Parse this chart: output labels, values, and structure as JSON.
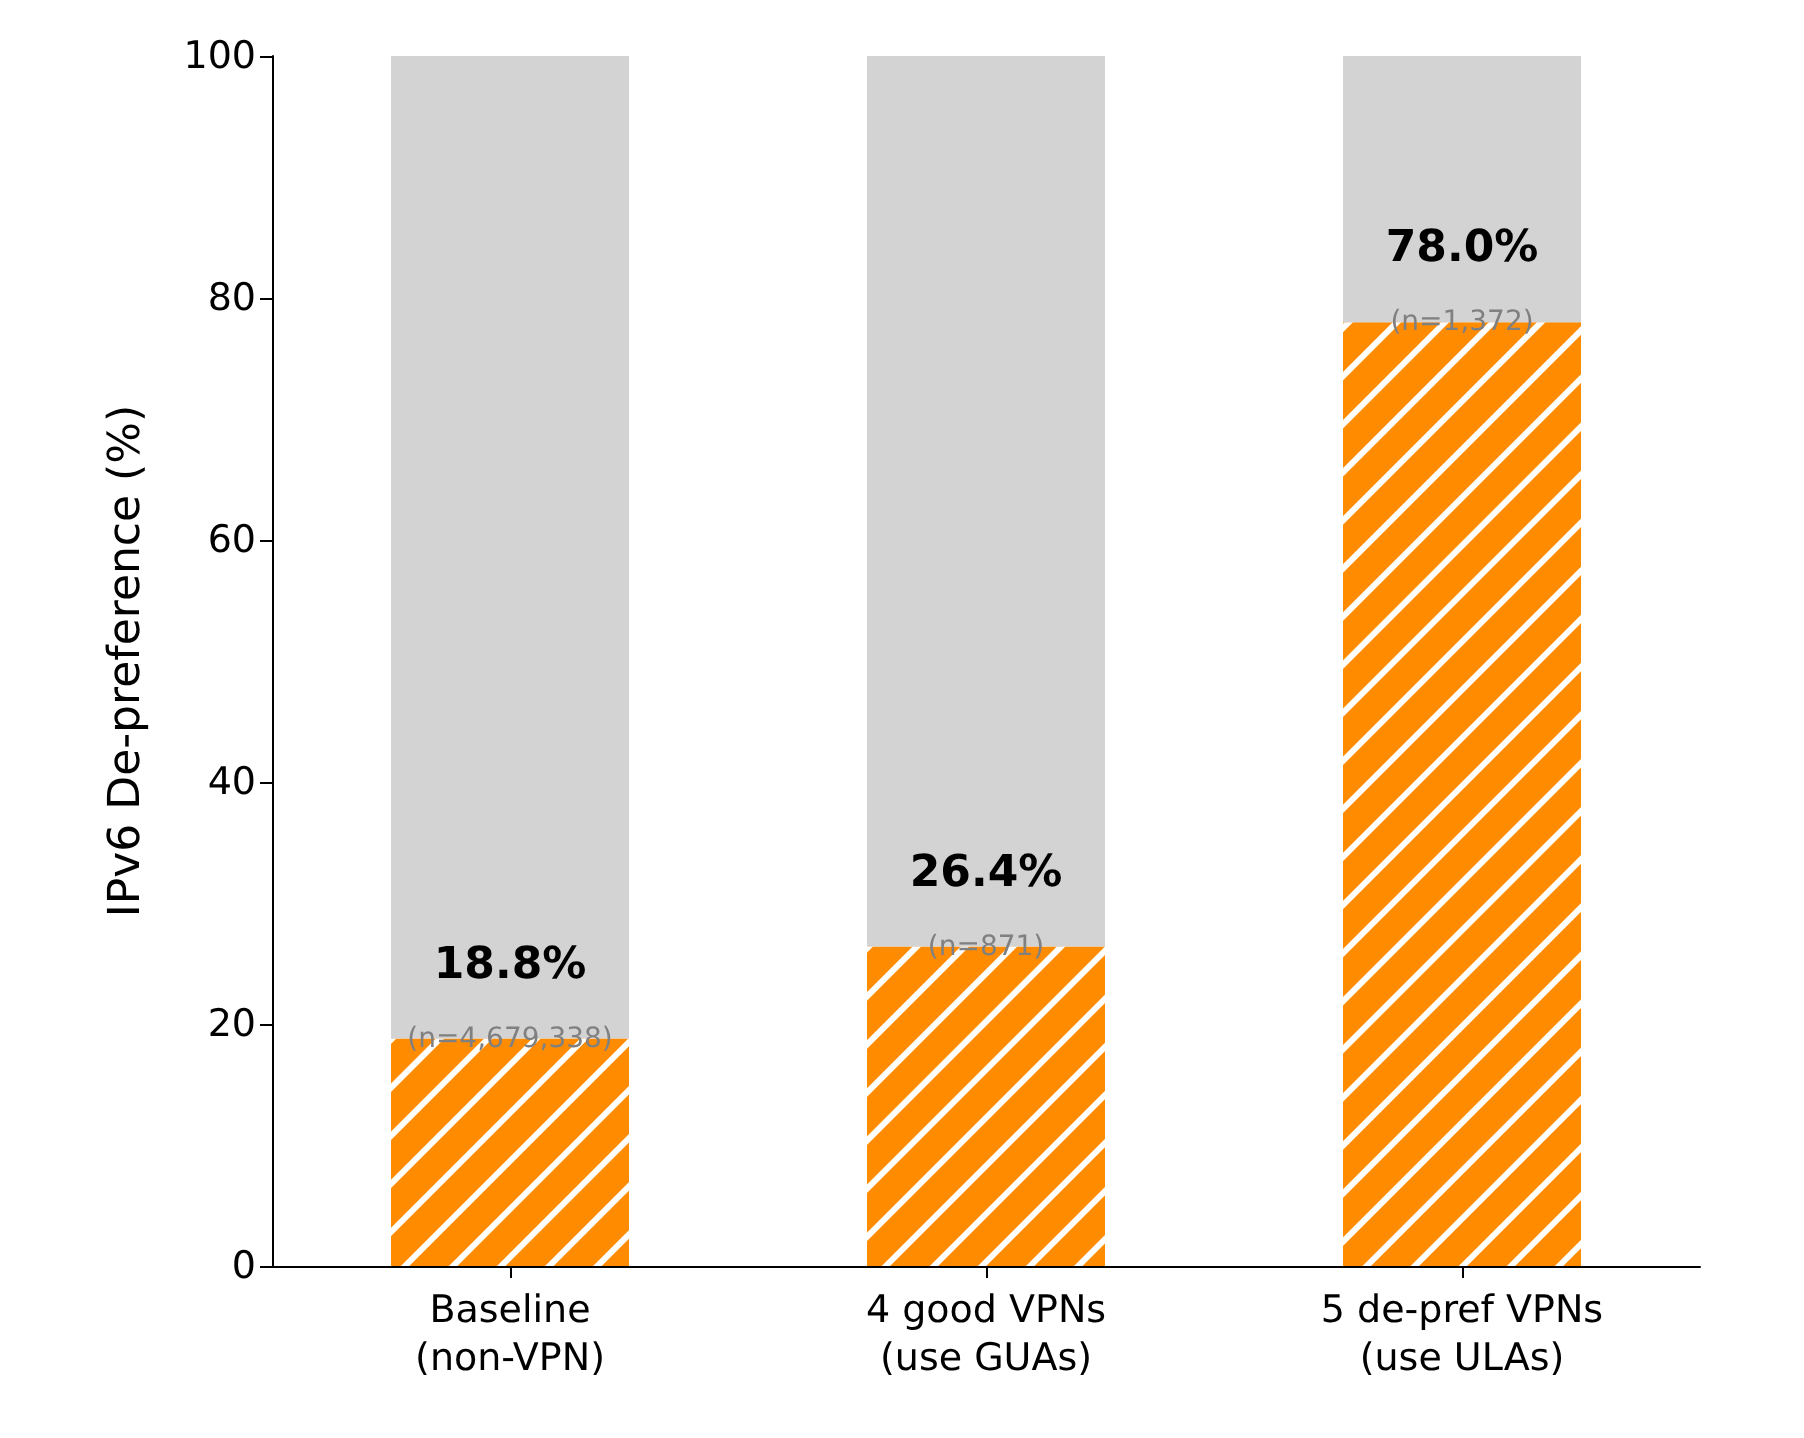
{
  "chart_data": {
    "type": "bar",
    "stacked": true,
    "ylabel": "IPv6 De-preference (%)",
    "categories": [
      "Baseline\n(non-VPN)",
      "4 good VPNs\n(use GUAs)",
      "5 de-pref VPNs\n(use ULAs)"
    ],
    "series": [
      {
        "color": "#ff8c00",
        "values": [
          18.8,
          26.4,
          78.0
        ],
        "value_labels": [
          "18.8%",
          "26.4%",
          "78.0%"
        ]
      },
      {
        "color": "#d3d3d3",
        "values": [
          81.2,
          73.6,
          22.0
        ]
      }
    ],
    "annotations": [
      {
        "text": "(n=4,679,338)",
        "x": "Baseline\n(non-VPN)",
        "y": 18.8
      },
      {
        "text": "(n=871)",
        "x": "4 good VPNs\n(use GUAs)",
        "y": 26.4
      },
      {
        "text": "(n=1,372)",
        "x": "5 de-pref VPNs\n(use ULAs)",
        "y": 78.0
      }
    ],
    "ylim": [
      0,
      100
    ],
    "yticks": [
      0,
      20,
      40,
      60,
      80,
      100
    ],
    "grid": false
  }
}
